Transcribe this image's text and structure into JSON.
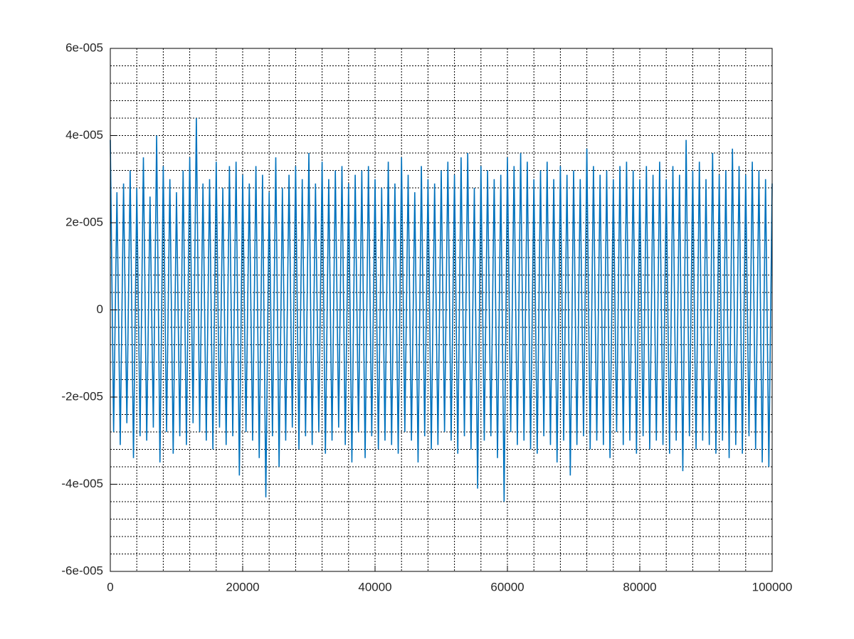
{
  "chart_data": {
    "type": "line",
    "color": "#0072bd",
    "grid": true,
    "xlim": [
      0,
      100000
    ],
    "xticks": [
      0,
      20000,
      40000,
      60000,
      80000,
      100000
    ],
    "ylim": [
      -6e-05,
      6e-05
    ],
    "yticks": [
      {
        "value": -6e-05,
        "label": "-6e-005"
      },
      {
        "value": -4e-05,
        "label": "-4e-005"
      },
      {
        "value": -2e-05,
        "label": "-2e-005"
      },
      0,
      {
        "value": 2e-05,
        "label": "2e-005"
      },
      {
        "value": 4e-05,
        "label": "4e-005"
      },
      {
        "value": 6e-05,
        "label": "6e-005"
      }
    ],
    "xminorticks": [
      0,
      4000,
      8000,
      12000,
      16000,
      20000,
      24000,
      28000,
      32000,
      36000,
      40000,
      44000,
      48000,
      52000,
      56000,
      60000,
      64000,
      68000,
      72000,
      76000,
      80000,
      84000,
      88000,
      92000,
      96000,
      100000
    ],
    "yminorticks": [
      -6e-05,
      -5.6e-05,
      -5.2e-05,
      -4.8e-05,
      -4.4e-05,
      -4e-05,
      -3.6e-05,
      -3.2e-05,
      -2.8e-05,
      -2.4e-05,
      -2e-05,
      -1.6e-05,
      -1.2e-05,
      -8e-06,
      -4e-06,
      0,
      4e-06,
      8e-06,
      1.2e-05,
      1.6e-05,
      2e-05,
      2.4e-05,
      2.8e-05,
      3.2e-05,
      3.6e-05,
      4e-05,
      4.4e-05,
      4.8e-05,
      5.2e-05,
      5.6e-05,
      6e-05
    ],
    "x": [
      0,
      500,
      1000,
      1500,
      2000,
      2500,
      3000,
      3500,
      4000,
      4500,
      5000,
      5500,
      6000,
      6500,
      7000,
      7500,
      8000,
      8500,
      9000,
      9500,
      10000,
      10500,
      11000,
      11500,
      12000,
      12500,
      13000,
      13500,
      14000,
      14500,
      15000,
      15500,
      16000,
      16500,
      17000,
      17500,
      18000,
      18500,
      19000,
      19500,
      20000,
      20500,
      21000,
      21500,
      22000,
      22500,
      23000,
      23500,
      24000,
      24500,
      25000,
      25500,
      26000,
      26500,
      27000,
      27500,
      28000,
      28500,
      29000,
      29500,
      30000,
      30500,
      31000,
      31500,
      32000,
      32500,
      33000,
      33500,
      34000,
      34500,
      35000,
      35500,
      36000,
      36500,
      37000,
      37500,
      38000,
      38500,
      39000,
      39500,
      40000,
      40500,
      41000,
      41500,
      42000,
      42500,
      43000,
      43500,
      44000,
      44500,
      45000,
      45500,
      46000,
      46500,
      47000,
      47500,
      48000,
      48500,
      49000,
      49500,
      50000,
      50500,
      51000,
      51500,
      52000,
      52500,
      53000,
      53500,
      54000,
      54500,
      55000,
      55500,
      56000,
      56500,
      57000,
      57500,
      58000,
      58500,
      59000,
      59500,
      60000,
      60500,
      61000,
      61500,
      62000,
      62500,
      63000,
      63500,
      64000,
      64500,
      65000,
      65500,
      66000,
      66500,
      67000,
      67500,
      68000,
      68500,
      69000,
      69500,
      70000,
      70500,
      71000,
      71500,
      72000,
      72500,
      73000,
      73500,
      74000,
      74500,
      75000,
      75500,
      76000,
      76500,
      77000,
      77500,
      78000,
      78500,
      79000,
      79500,
      80000,
      80500,
      81000,
      81500,
      82000,
      82500,
      83000,
      83500,
      84000,
      84500,
      85000,
      85500,
      86000,
      86500,
      87000,
      87500,
      88000,
      88500,
      89000,
      89500,
      90000,
      90500,
      91000,
      91500,
      92000,
      92500,
      93000,
      93500,
      94000,
      94500,
      95000,
      95500,
      96000,
      96500,
      97000,
      97500,
      98000,
      98500,
      99000,
      99500,
      100000
    ],
    "values": [
      3.9e-05,
      -2.8e-05,
      2.7e-05,
      -3.1e-05,
      2.9e-05,
      -2.6e-05,
      3.2e-05,
      -3.4e-05,
      2.8e-05,
      -2.9e-05,
      3.5e-05,
      -3e-05,
      2.6e-05,
      -2.7e-05,
      4e-05,
      -3.5e-05,
      3.3e-05,
      -2.8e-05,
      3e-05,
      -3.3e-05,
      2.7e-05,
      -2.9e-05,
      3.2e-05,
      -3.1e-05,
      3.5e-05,
      -2.6e-05,
      4.4e-05,
      -2.8e-05,
      2.9e-05,
      -3e-05,
      3e-05,
      -3.2e-05,
      3.4e-05,
      -2.7e-05,
      2.8e-05,
      -3.1e-05,
      3.3e-05,
      -2.9e-05,
      3.4e-05,
      -3.8e-05,
      3.1e-05,
      -2.8e-05,
      2.9e-05,
      -3e-05,
      3.3e-05,
      -3.4e-05,
      3.1e-05,
      -4.3e-05,
      2.7e-05,
      -2.9e-05,
      3.5e-05,
      -3.6e-05,
      2.8e-05,
      -3e-05,
      3.1e-05,
      -2.7e-05,
      3.3e-05,
      -3.2e-05,
      3e-05,
      -2.9e-05,
      3.6e-05,
      -3.1e-05,
      2.9e-05,
      -2.8e-05,
      3.4e-05,
      -3.3e-05,
      3e-05,
      -3e-05,
      3.2e-05,
      -2.7e-05,
      3.3e-05,
      -3.1e-05,
      2.9e-05,
      -3.5e-05,
      3.1e-05,
      -2.8e-05,
      3.2e-05,
      -3.4e-05,
      3.3e-05,
      -2.9e-05,
      3e-05,
      -3.2e-05,
      2.8e-05,
      -3e-05,
      3.4e-05,
      -3.1e-05,
      2.9e-05,
      -3.3e-05,
      3.5e-05,
      -2.8e-05,
      3.1e-05,
      -3e-05,
      2.7e-05,
      -3.5e-05,
      3.3e-05,
      -2.9e-05,
      3e-05,
      -3.2e-05,
      2.9e-05,
      -3.1e-05,
      3.2e-05,
      -2.8e-05,
      3.4e-05,
      -3e-05,
      3.1e-05,
      -3.3e-05,
      3.5e-05,
      -2.9e-05,
      3.6e-05,
      -3.2e-05,
      2.8e-05,
      -4.1e-05,
      3.3e-05,
      -3e-05,
      3.2e-05,
      -2.9e-05,
      3e-05,
      -3.4e-05,
      3.1e-05,
      -4.4e-05,
      3.5e-05,
      -2.8e-05,
      3.3e-05,
      -3.1e-05,
      3.6e-05,
      -3e-05,
      3.4e-05,
      -3.2e-05,
      3e-05,
      -3.3e-05,
      3.2e-05,
      -2.9e-05,
      3.4e-05,
      -3.1e-05,
      3e-05,
      -3.5e-05,
      3.3e-05,
      -3e-05,
      3.1e-05,
      -3.8e-05,
      3.2e-05,
      -3.1e-05,
      3e-05,
      -2.9e-05,
      3.7e-05,
      -3.2e-05,
      3.3e-05,
      -3e-05,
      3.1e-05,
      -3.1e-05,
      3.2e-05,
      -3.4e-05,
      3e-05,
      -2.8e-05,
      3.3e-05,
      -3.1e-05,
      3.4e-05,
      -3e-05,
      3.2e-05,
      -3.3e-05,
      3e-05,
      -2.9e-05,
      3.3e-05,
      -3.2e-05,
      3.1e-05,
      -3e-05,
      3.4e-05,
      -3.1e-05,
      3e-05,
      -3.3e-05,
      3.3e-05,
      -3e-05,
      3.1e-05,
      -3.7e-05,
      3.9e-05,
      -2.9e-05,
      3.2e-05,
      -3.2e-05,
      3.4e-05,
      -3e-05,
      3e-05,
      -3.1e-05,
      3.6e-05,
      -3.3e-05,
      3.1e-05,
      -3e-05,
      3.2e-05,
      -3.4e-05,
      3.7e-05,
      -3.1e-05,
      3.3e-05,
      -3.3e-05,
      3.1e-05,
      -2.9e-05,
      3.4e-05,
      -3.2e-05,
      3.2e-05,
      -3.5e-05,
      3e-05,
      -3.6e-05,
      2.9e-05
    ]
  }
}
